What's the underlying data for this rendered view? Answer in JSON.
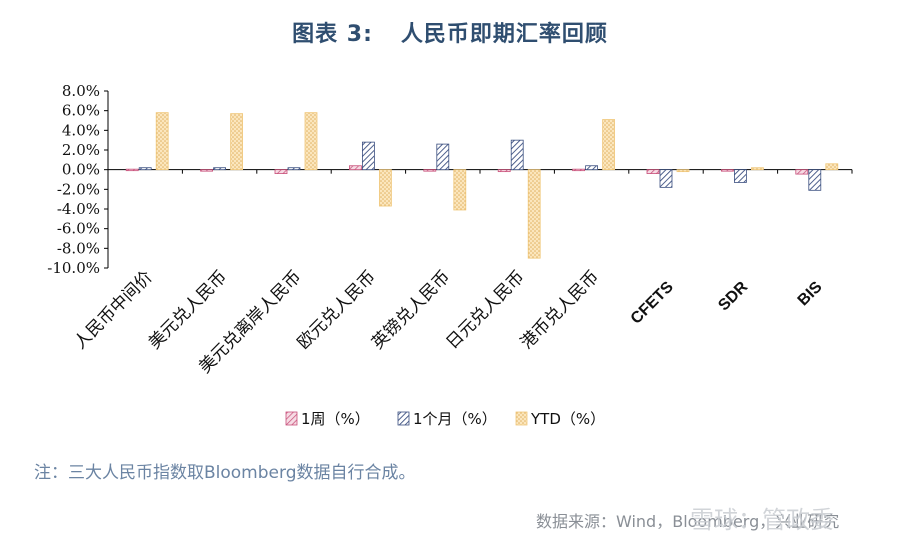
{
  "title": {
    "num": "图表 3:",
    "text": "人民币即期汇率回顾"
  },
  "note": "注：三大人民币指数取Bloomberg数据自行合成。",
  "source": "数据来源：Wind，Bloomberg，兴业研究",
  "watermark": "雪球：管政委",
  "colors": {
    "weekly": "#c8507a",
    "monthly": "#3b4f80",
    "ytd": "#f0c77a"
  },
  "chart_data": {
    "type": "bar",
    "categories": [
      "人民币中间价",
      "美元兑人民币",
      "美元兑离岸人民币",
      "欧元兑人民币",
      "英镑兑人民币",
      "日元兑人民币",
      "港币兑人民币",
      "CFETS",
      "SDR",
      "BIS"
    ],
    "series": [
      {
        "name": "1周（%）",
        "values": [
          0.05,
          -0.15,
          -0.4,
          0.4,
          0.0,
          -0.2,
          0.05,
          -0.4,
          -0.15,
          -0.45
        ]
      },
      {
        "name": "1个月（%）",
        "values": [
          0.2,
          0.2,
          0.2,
          2.8,
          2.6,
          3.0,
          0.4,
          -1.8,
          -1.3,
          -2.1
        ]
      },
      {
        "name": "YTD（%）",
        "values": [
          5.8,
          5.7,
          5.8,
          -3.7,
          -4.1,
          -9.0,
          5.1,
          -0.2,
          0.2,
          0.6
        ]
      }
    ],
    "ylim": [
      -10,
      8
    ],
    "yticks": [
      "8.0%",
      "6.0%",
      "4.0%",
      "2.0%",
      "0.0%",
      "-2.0%",
      "-4.0%",
      "-6.0%",
      "-8.0%",
      "-10.0%"
    ],
    "legend_position": "bottom"
  }
}
